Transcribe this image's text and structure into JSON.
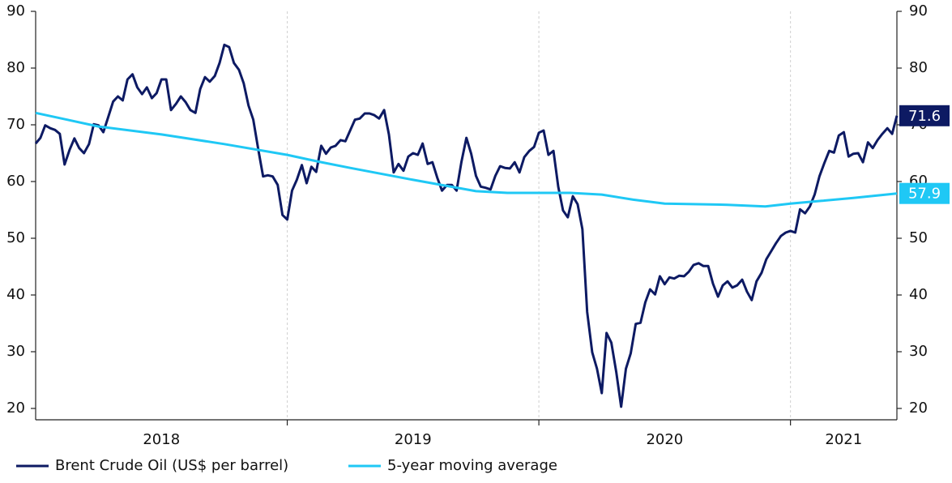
{
  "chart_data": {
    "type": "line",
    "year_labels": [
      2018,
      2019,
      2020,
      2021
    ],
    "xlim": [
      2018,
      2021.423
    ],
    "xticks": [
      2019,
      2020,
      2021
    ],
    "ylim": [
      18,
      90
    ],
    "yticks": [
      20,
      30,
      40,
      50,
      60,
      70,
      80,
      90
    ],
    "y2lim": [
      18,
      90
    ],
    "y2ticks": [
      20,
      30,
      40,
      50,
      60,
      70,
      80,
      90
    ],
    "legend": "bottom",
    "series": [
      {
        "name": "Brent Crude Oil (US$ per barrel)",
        "color": "#0d1a63",
        "x": [
          2018,
          2018.019,
          2018.038,
          2018.058,
          2018.077,
          2018.096,
          2018.115,
          2018.135,
          2018.154,
          2018.173,
          2018.192,
          2018.212,
          2018.231,
          2018.25,
          2018.269,
          2018.288,
          2018.308,
          2018.327,
          2018.346,
          2018.365,
          2018.385,
          2018.404,
          2018.423,
          2018.442,
          2018.462,
          2018.481,
          2018.5,
          2018.519,
          2018.538,
          2018.558,
          2018.577,
          2018.596,
          2018.615,
          2018.635,
          2018.654,
          2018.673,
          2018.692,
          2018.712,
          2018.731,
          2018.75,
          2018.769,
          2018.788,
          2018.808,
          2018.827,
          2018.846,
          2018.865,
          2018.885,
          2018.904,
          2018.923,
          2018.942,
          2018.962,
          2018.981,
          2019,
          2019.019,
          2019.038,
          2019.058,
          2019.077,
          2019.096,
          2019.115,
          2019.135,
          2019.154,
          2019.173,
          2019.192,
          2019.212,
          2019.231,
          2019.25,
          2019.269,
          2019.288,
          2019.308,
          2019.327,
          2019.346,
          2019.365,
          2019.385,
          2019.404,
          2019.423,
          2019.442,
          2019.462,
          2019.481,
          2019.5,
          2019.519,
          2019.538,
          2019.558,
          2019.577,
          2019.596,
          2019.615,
          2019.635,
          2019.654,
          2019.673,
          2019.692,
          2019.712,
          2019.731,
          2019.75,
          2019.769,
          2019.788,
          2019.808,
          2019.827,
          2019.846,
          2019.865,
          2019.885,
          2019.904,
          2019.923,
          2019.942,
          2019.962,
          2019.981,
          2020,
          2020.019,
          2020.038,
          2020.058,
          2020.077,
          2020.096,
          2020.115,
          2020.135,
          2020.154,
          2020.173,
          2020.192,
          2020.212,
          2020.231,
          2020.25,
          2020.269,
          2020.288,
          2020.308,
          2020.327,
          2020.346,
          2020.365,
          2020.385,
          2020.404,
          2020.423,
          2020.442,
          2020.462,
          2020.481,
          2020.5,
          2020.519,
          2020.538,
          2020.558,
          2020.577,
          2020.596,
          2020.615,
          2020.635,
          2020.654,
          2020.673,
          2020.692,
          2020.712,
          2020.731,
          2020.75,
          2020.769,
          2020.788,
          2020.808,
          2020.827,
          2020.846,
          2020.865,
          2020.885,
          2020.904,
          2020.923,
          2020.942,
          2020.962,
          2020.981,
          2021,
          2021.019,
          2021.038,
          2021.058,
          2021.077,
          2021.096,
          2021.115,
          2021.135,
          2021.154,
          2021.173,
          2021.192,
          2021.212,
          2021.231,
          2021.25,
          2021.269,
          2021.288,
          2021.308,
          2021.327,
          2021.346,
          2021.365,
          2021.385,
          2021.404,
          2021.423
        ],
        "values": [
          66.7,
          67.7,
          69.9,
          69.4,
          69.1,
          68.4,
          63.0,
          65.6,
          67.6,
          65.9,
          65.0,
          66.6,
          70.1,
          69.9,
          68.7,
          71.3,
          74.1,
          75.0,
          74.3,
          78.0,
          78.9,
          76.6,
          75.4,
          76.6,
          74.7,
          75.6,
          78.0,
          78.0,
          72.6,
          73.7,
          75.0,
          74.0,
          72.6,
          72.1,
          76.3,
          78.4,
          77.6,
          78.6,
          80.9,
          84.1,
          83.7,
          80.9,
          79.7,
          77.3,
          73.4,
          70.9,
          65.6,
          60.9,
          61.1,
          60.9,
          59.4,
          54.1,
          53.3,
          58.4,
          60.3,
          62.9,
          59.7,
          62.6,
          61.7,
          66.3,
          64.9,
          66.0,
          66.3,
          67.3,
          67.1,
          69.0,
          70.9,
          71.1,
          72.0,
          72.0,
          71.7,
          71.1,
          72.6,
          68.3,
          61.6,
          63.1,
          61.9,
          64.4,
          65.0,
          64.7,
          66.7,
          63.1,
          63.4,
          60.7,
          58.4,
          59.4,
          59.4,
          58.4,
          63.4,
          67.7,
          64.9,
          61.0,
          59.1,
          58.9,
          58.6,
          61.0,
          62.7,
          62.4,
          62.3,
          63.4,
          61.6,
          64.3,
          65.4,
          66.1,
          68.6,
          69.0,
          64.7,
          65.4,
          59.1,
          54.9,
          53.7,
          57.4,
          56.0,
          51.6,
          37.0,
          29.9,
          27.0,
          22.7,
          33.3,
          31.6,
          26.3,
          20.3,
          27.0,
          29.7,
          34.9,
          35.1,
          38.7,
          41.0,
          40.1,
          43.3,
          41.9,
          43.1,
          42.9,
          43.4,
          43.3,
          44.1,
          45.3,
          45.6,
          45.1,
          45.1,
          42.0,
          39.7,
          41.7,
          42.4,
          41.3,
          41.7,
          42.7,
          40.6,
          39.1,
          42.4,
          43.9,
          46.3,
          47.7,
          49.1,
          50.4,
          51.0,
          51.3,
          51.0,
          55.1,
          54.4,
          55.6,
          57.7,
          60.9,
          63.3,
          65.4,
          65.1,
          68.1,
          68.7,
          64.4,
          64.9,
          65.0,
          63.4,
          66.9,
          65.9,
          67.3,
          68.4,
          69.4,
          68.4,
          71.6
        ]
      },
      {
        "name": "5-year moving average",
        "color": "#1fc8f5",
        "x": [
          2018,
          2018.125,
          2018.25,
          2018.5,
          2018.75,
          2019,
          2019.125,
          2019.25,
          2019.5,
          2019.75,
          2019.875,
          2020,
          2020.125,
          2020.25,
          2020.375,
          2020.5,
          2020.75,
          2020.9,
          2021,
          2021.125,
          2021.25,
          2021.423
        ],
        "values": [
          72.1,
          70.9,
          69.7,
          68.3,
          66.6,
          64.7,
          63.5,
          62.4,
          60.3,
          58.3,
          58.0,
          58.0,
          58.0,
          57.7,
          56.8,
          56.1,
          55.9,
          55.6,
          56.1,
          56.6,
          57.1,
          57.9
        ]
      }
    ]
  }
}
